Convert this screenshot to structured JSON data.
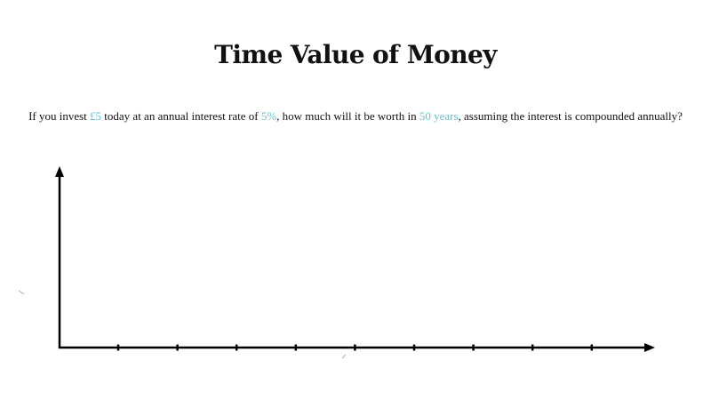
{
  "title": "Time Value of Money",
  "question": {
    "part1": "If you invest ",
    "amount": "£5",
    "part2": " today at an annual interest rate of ",
    "rate": "5%",
    "part3": ", how much will it be worth in ",
    "duration": "50 years",
    "part4": ", assuming the interest is compounded annually?"
  },
  "colors": {
    "highlight": "#5ec4cf",
    "axis": "#000000"
  },
  "axes": {
    "x_tick_count": 9
  }
}
